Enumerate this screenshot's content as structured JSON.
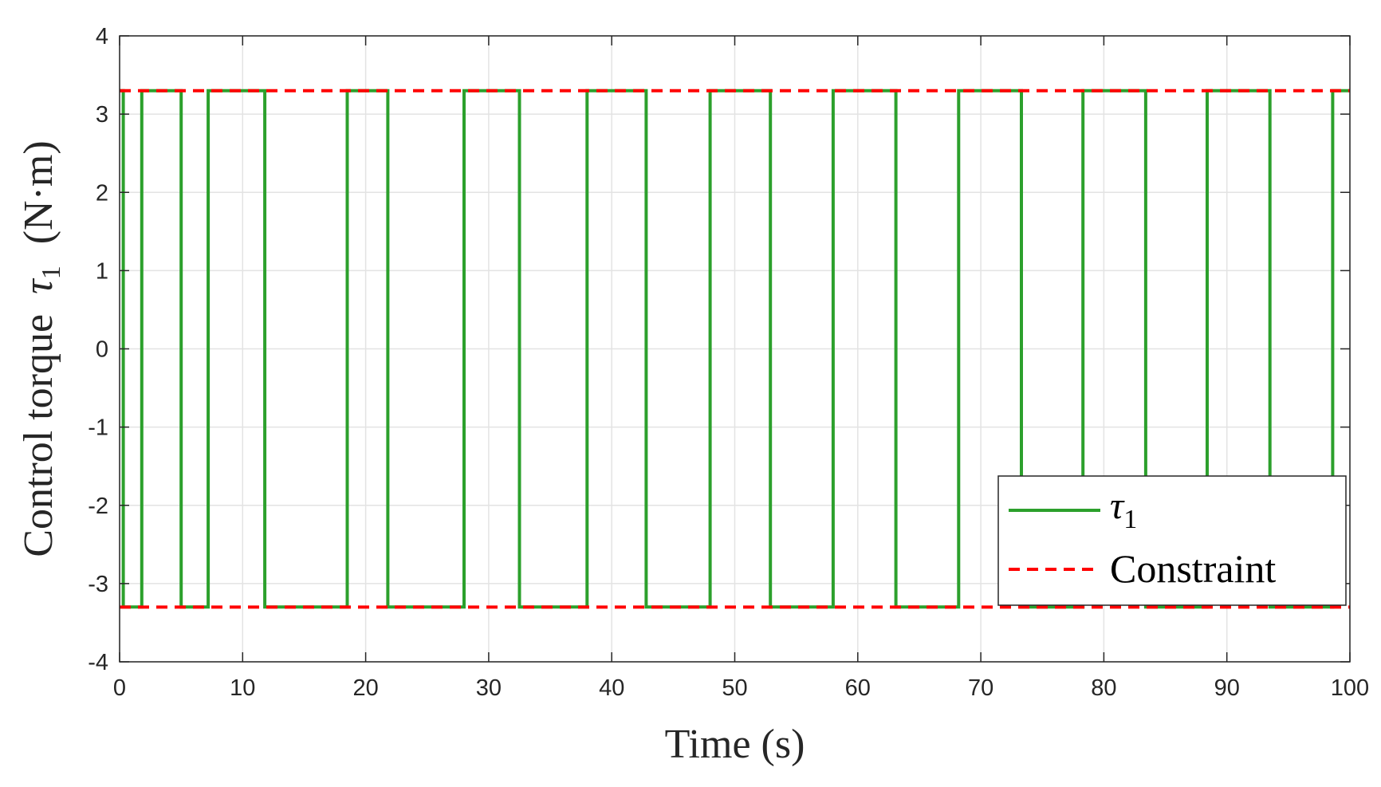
{
  "chart_data": {
    "type": "line",
    "xlabel": "Time (s)",
    "ylabel_text": "Control torque",
    "ylabel_symbol": "τ",
    "ylabel_subscript": "1",
    "ylabel_unit": "(N·m)",
    "xlim": [
      0,
      100
    ],
    "ylim": [
      -4,
      4
    ],
    "x_ticks": [
      0,
      10,
      20,
      30,
      40,
      50,
      60,
      70,
      80,
      90,
      100
    ],
    "y_ticks": [
      -4,
      -3,
      -2,
      -1,
      0,
      1,
      2,
      3,
      4
    ],
    "grid": true,
    "legend_position": "bottom-right",
    "series": [
      {
        "name": "τ1",
        "name_symbol": "τ",
        "name_subscript": "1",
        "color": "#2ca02c",
        "style": "solid",
        "step": true,
        "x": [
          0,
          0.3,
          1.8,
          5.0,
          7.2,
          11.8,
          18.5,
          21.8,
          28.0,
          32.5,
          38.0,
          42.8,
          48.0,
          52.9,
          58.0,
          63.1,
          68.2,
          73.3,
          78.3,
          83.4,
          88.4,
          93.5,
          98.6,
          100
        ],
        "y": [
          3.3,
          -3.3,
          3.3,
          -3.3,
          3.3,
          -3.3,
          3.3,
          -3.3,
          3.3,
          -3.3,
          3.3,
          -3.3,
          3.3,
          -3.3,
          3.3,
          -3.3,
          3.3,
          -3.3,
          3.3,
          -3.3,
          3.3,
          -3.3,
          3.3,
          3.3
        ]
      },
      {
        "name": "Constraint",
        "color": "#ff0000",
        "style": "dashed",
        "upper": 3.3,
        "lower": -3.3
      }
    ]
  }
}
